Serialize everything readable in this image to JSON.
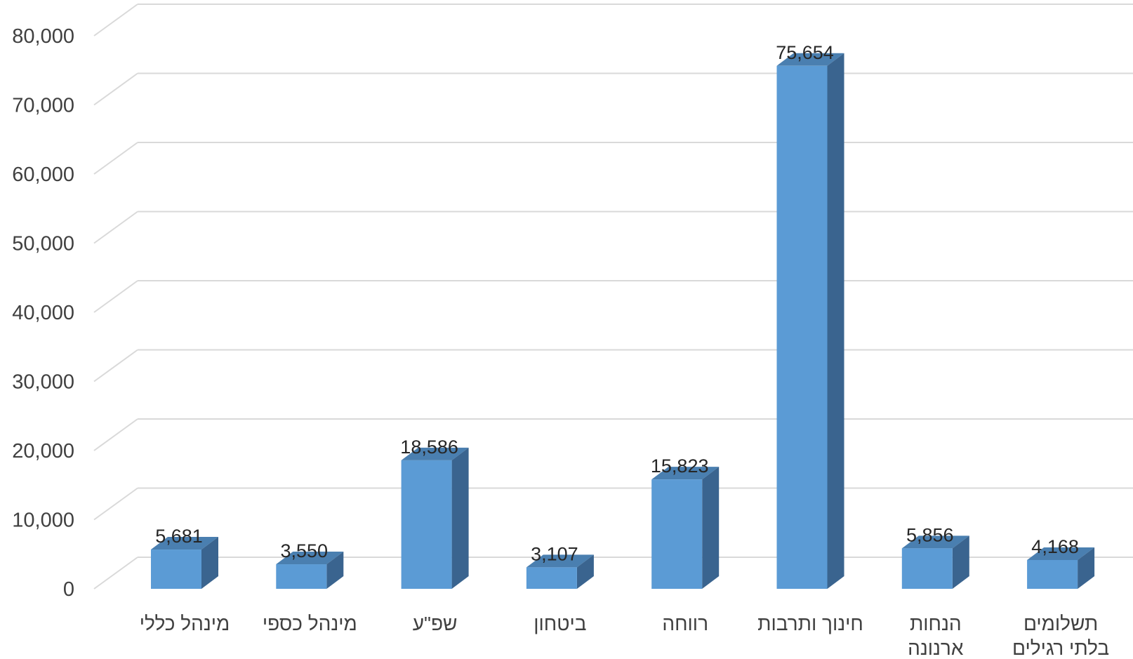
{
  "chart_data": {
    "type": "bar",
    "style": "3d-column",
    "categories": [
      [
        "מינהל כללי"
      ],
      [
        "מינהל כספי"
      ],
      [
        "שפ\"ע"
      ],
      [
        "ביטחון"
      ],
      [
        "רווחה"
      ],
      [
        "חינוך ותרבות"
      ],
      [
        "הנחות",
        "ארנונה"
      ],
      [
        "תשלומים",
        "בלתי רגילים"
      ]
    ],
    "values": [
      5681,
      3550,
      18586,
      3107,
      15823,
      75654,
      5856,
      4168
    ],
    "value_labels": [
      "5,681",
      "3,550",
      "18,586",
      "3,107",
      "15,823",
      "75,654",
      "5,856",
      "4,168"
    ],
    "yticks": [
      "0",
      "10,000",
      "20,000",
      "30,000",
      "40,000",
      "50,000",
      "60,000",
      "70,000",
      "80,000"
    ],
    "ylim": [
      0,
      80000
    ],
    "grid": true,
    "legend": "none",
    "title": "",
    "xlabel": "",
    "ylabel": "",
    "colors": {
      "front": "#5B9BD5",
      "top": "#4A7FB0",
      "side": "#3A648F",
      "grid": "#D9D9D9"
    }
  }
}
